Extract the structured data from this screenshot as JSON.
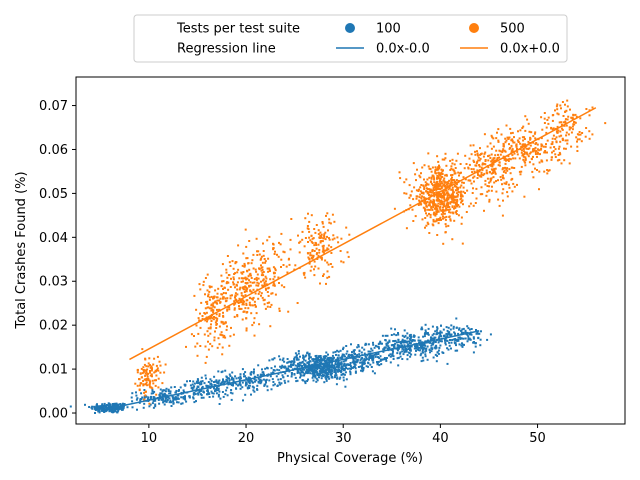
{
  "chart_data": {
    "type": "scatter",
    "xlabel": "Physical Coverage  (%)",
    "ylabel": "Total Crashes Found (%)",
    "xlim": [
      2.5,
      59
    ],
    "ylim": [
      -0.0025,
      0.0765
    ],
    "x_ticks": [
      10,
      20,
      30,
      40,
      50
    ],
    "y_ticks": [
      0.0,
      0.01,
      0.02,
      0.03,
      0.04,
      0.05,
      0.06,
      0.07
    ],
    "y_tick_labels": [
      "0.00",
      "0.01",
      "0.02",
      "0.03",
      "0.04",
      "0.05",
      "0.06",
      "0.07"
    ],
    "grid": false,
    "legend": {
      "placement": "top-center",
      "rows": [
        {
          "label": "Tests per test suite",
          "items": [
            {
              "label": "100",
              "color": "#1f77b4",
              "kind": "marker"
            },
            {
              "label": "500",
              "color": "#ff7f0e",
              "kind": "marker"
            }
          ]
        },
        {
          "label": "Regression line",
          "items": [
            {
              "label": "0.0x-0.0",
              "color": "#1f77b4",
              "kind": "line"
            },
            {
              "label": "0.0x+0.0",
              "color": "#ff7f0e",
              "kind": "line"
            }
          ]
        }
      ]
    },
    "series": [
      {
        "name": "100",
        "color": "#1f77b4",
        "clusters": [
          {
            "cx": 6,
            "cy": 0.0012,
            "sx": 1.0,
            "sy": 0.0006,
            "n": 180
          },
          {
            "cx": 11.5,
            "cy": 0.0035,
            "sx": 1.3,
            "sy": 0.001,
            "n": 160
          },
          {
            "cx": 16,
            "cy": 0.0055,
            "sx": 1.4,
            "sy": 0.0012,
            "n": 160
          },
          {
            "cx": 20.5,
            "cy": 0.0075,
            "sx": 1.6,
            "sy": 0.0012,
            "n": 160
          },
          {
            "cx": 27.5,
            "cy": 0.0105,
            "sx": 2.0,
            "sy": 0.0015,
            "n": 600
          },
          {
            "cx": 32,
            "cy": 0.0125,
            "sx": 1.6,
            "sy": 0.0013,
            "n": 180
          },
          {
            "cx": 37,
            "cy": 0.0155,
            "sx": 1.8,
            "sy": 0.0015,
            "n": 300
          },
          {
            "cx": 41.5,
            "cy": 0.0175,
            "sx": 1.5,
            "sy": 0.0014,
            "n": 160
          }
        ],
        "regression": {
          "x": [
            5,
            44
          ],
          "y": [
            0.0006,
            0.0187
          ]
        }
      },
      {
        "name": "500",
        "color": "#ff7f0e",
        "clusters": [
          {
            "cx": 10,
            "cy": 0.0085,
            "sx": 0.6,
            "sy": 0.0022,
            "n": 110
          },
          {
            "cx": 16.5,
            "cy": 0.022,
            "sx": 1.0,
            "sy": 0.004,
            "n": 150
          },
          {
            "cx": 19.5,
            "cy": 0.028,
            "sx": 1.2,
            "sy": 0.004,
            "n": 200
          },
          {
            "cx": 22,
            "cy": 0.031,
            "sx": 1.3,
            "sy": 0.0045,
            "n": 140
          },
          {
            "cx": 27.5,
            "cy": 0.038,
            "sx": 1.4,
            "sy": 0.0035,
            "n": 150
          },
          {
            "cx": 40,
            "cy": 0.0495,
            "sx": 1.4,
            "sy": 0.0032,
            "n": 600
          },
          {
            "cx": 45,
            "cy": 0.0555,
            "sx": 1.4,
            "sy": 0.003,
            "n": 200
          },
          {
            "cx": 49,
            "cy": 0.06,
            "sx": 1.7,
            "sy": 0.0028,
            "n": 230
          },
          {
            "cx": 53,
            "cy": 0.065,
            "sx": 1.3,
            "sy": 0.0028,
            "n": 120
          }
        ],
        "regression": {
          "x": [
            8,
            56
          ],
          "y": [
            0.0122,
            0.0695
          ]
        }
      }
    ]
  }
}
